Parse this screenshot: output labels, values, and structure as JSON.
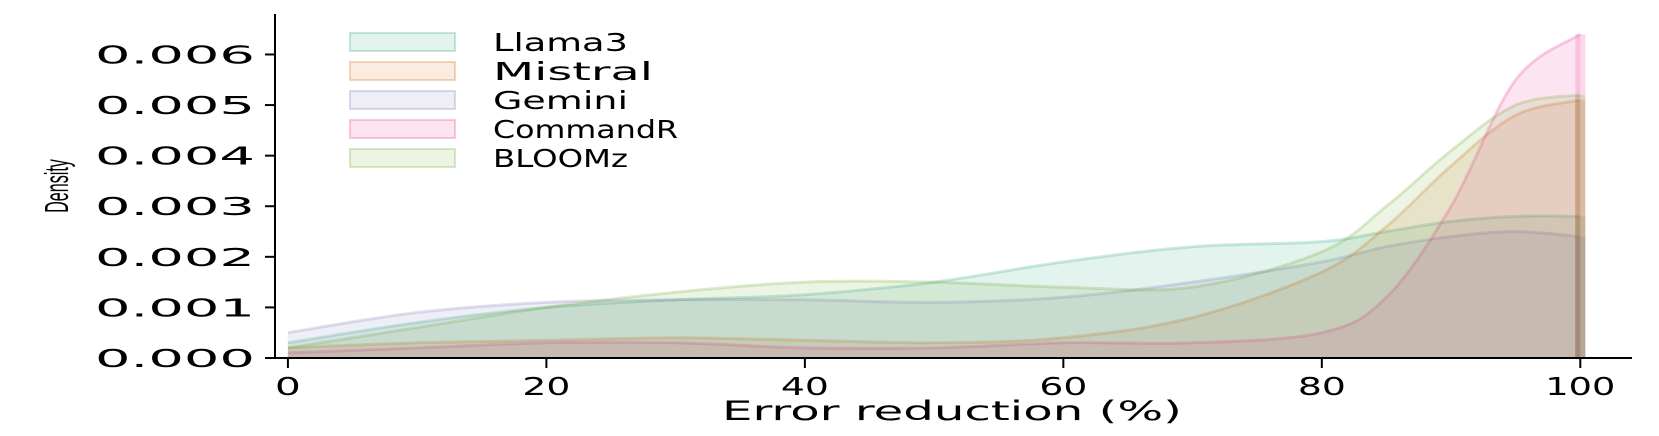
{
  "chart_data": {
    "type": "area",
    "xlabel": "Error reduction (%)",
    "ylabel": "Density",
    "xlim": [
      -1,
      104
    ],
    "ylim": [
      0,
      0.0068
    ],
    "xticks": [
      0,
      20,
      40,
      60,
      80,
      100
    ],
    "xtick_labels": [
      "0",
      "20",
      "40",
      "60",
      "80",
      "100"
    ],
    "yticks": [
      0,
      0.001,
      0.002,
      0.003,
      0.004,
      0.005,
      0.006
    ],
    "ytick_labels": [
      "0.000",
      "0.001",
      "0.002",
      "0.003",
      "0.004",
      "0.005",
      "0.006"
    ],
    "legend_position": "top-left",
    "x": [
      0,
      10,
      20,
      30,
      40,
      50,
      60,
      70,
      80,
      85,
      90,
      95,
      100
    ],
    "series": [
      {
        "name": "Llama3",
        "color": "#1b9e77",
        "values": [
          0.0003,
          0.0007,
          0.001,
          0.00115,
          0.00125,
          0.0015,
          0.0019,
          0.0022,
          0.0023,
          0.0025,
          0.0027,
          0.0028,
          0.0028
        ]
      },
      {
        "name": "Mistral",
        "color": "#d95f02",
        "values": [
          0.0002,
          0.0003,
          0.00035,
          0.0004,
          0.00035,
          0.0003,
          0.0004,
          0.0008,
          0.0017,
          0.0026,
          0.0038,
          0.0048,
          0.0051
        ]
      },
      {
        "name": "Gemini",
        "color": "#7570b3",
        "values": [
          0.0005,
          0.0009,
          0.0011,
          0.00115,
          0.00115,
          0.0011,
          0.0012,
          0.0015,
          0.0019,
          0.0022,
          0.0024,
          0.0025,
          0.0024
        ]
      },
      {
        "name": "CommandR",
        "color": "#e7298a",
        "values": [
          0.0001,
          0.0002,
          0.0003,
          0.0003,
          0.0002,
          0.0002,
          0.0003,
          0.0003,
          0.0005,
          0.0012,
          0.003,
          0.0055,
          0.0064
        ]
      },
      {
        "name": "BLOOMz",
        "color": "#66a61e",
        "values": [
          0.0002,
          0.0006,
          0.001,
          0.0013,
          0.0015,
          0.0015,
          0.0014,
          0.0014,
          0.0021,
          0.003,
          0.0041,
          0.005,
          0.0052
        ]
      }
    ]
  }
}
